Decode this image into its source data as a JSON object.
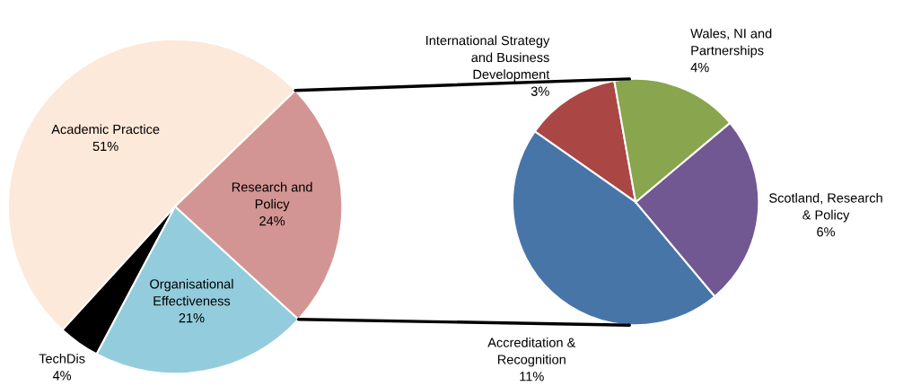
{
  "chart_data": [
    {
      "type": "pie",
      "categories": [
        "Academic Practice",
        "TechDis",
        "Organisational\nEffectiveness",
        "Research and\nPolicy"
      ],
      "values": [
        51,
        4,
        21,
        24
      ],
      "value_labels": [
        "51%",
        "4%",
        "21%",
        "24%"
      ],
      "colors": [
        "#fde9d9",
        "#000000",
        "#93cddd",
        "#d39593"
      ]
    },
    {
      "type": "pie",
      "categories": [
        "International Strategy\nand Business\nDevelopment",
        "Accreditation &\nRecognition",
        "Scotland, Research\n& Policy",
        "Wales, NI and\nPartnerships"
      ],
      "values": [
        3,
        11,
        6,
        4
      ],
      "value_labels": [
        "3%",
        "11%",
        "6%",
        "4%"
      ],
      "colors": [
        "#aa4644",
        "#4775a8",
        "#715893",
        "#89a54e"
      ]
    }
  ]
}
